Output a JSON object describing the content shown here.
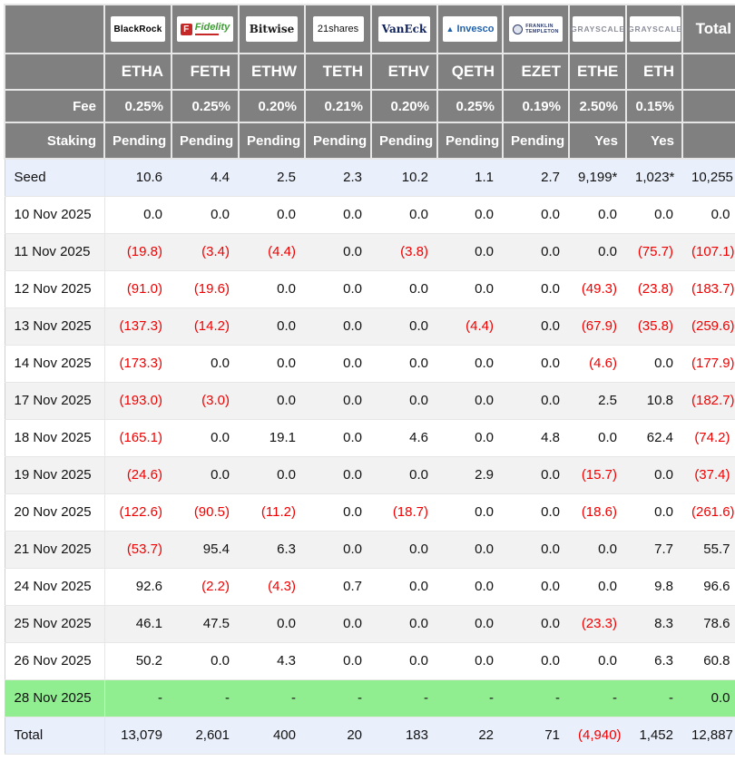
{
  "chart_data": {
    "type": "table",
    "fee_label": "Fee",
    "staking_label": "Staking",
    "total_label": "Total",
    "colors": {
      "header_bg": "#808080",
      "negative_red": "#f20000",
      "highlight_green": "#90ee90",
      "seed_row_blue": "#e9effb",
      "alt_row_gray": "#f2f2f2"
    },
    "providers": [
      {
        "ticker": "ETHA",
        "fee": "0.25%",
        "staking": "Pending",
        "logo": {
          "style": "blackrock",
          "text": "BlackRock"
        }
      },
      {
        "ticker": "FETH",
        "fee": "0.25%",
        "staking": "Pending",
        "logo": {
          "style": "fidelity",
          "mark": "F",
          "text": "Fidelity"
        }
      },
      {
        "ticker": "ETHW",
        "fee": "0.20%",
        "staking": "Pending",
        "logo": {
          "style": "bitwise",
          "text": "Bitwise"
        }
      },
      {
        "ticker": "TETH",
        "fee": "0.21%",
        "staking": "Pending",
        "logo": {
          "style": "21shares",
          "text": "21shares"
        }
      },
      {
        "ticker": "ETHV",
        "fee": "0.20%",
        "staking": "Pending",
        "logo": {
          "style": "vaneck",
          "text": "VanEck"
        }
      },
      {
        "ticker": "QETH",
        "fee": "0.25%",
        "staking": "Pending",
        "logo": {
          "style": "invesco",
          "mark": "▲",
          "text": "Invesco"
        }
      },
      {
        "ticker": "EZET",
        "fee": "0.19%",
        "staking": "Pending",
        "logo": {
          "style": "franklin",
          "text": "FRANKLIN",
          "text2": "TEMPLETON"
        }
      },
      {
        "ticker": "ETHE",
        "fee": "2.50%",
        "staking": "Yes",
        "logo": {
          "style": "grayscale",
          "text": "GRAYSCALE"
        }
      },
      {
        "ticker": "ETH",
        "fee": "0.15%",
        "staking": "Yes",
        "logo": {
          "style": "grayscale",
          "text": "GRAYSCALE"
        }
      }
    ],
    "rows": [
      {
        "label": "Seed",
        "type": "seed",
        "cells": [
          "10.6",
          "4.4",
          "2.5",
          "2.3",
          "10.2",
          "1.1",
          "2.7",
          "9,199*",
          "1,023*",
          "10,255"
        ]
      },
      {
        "label": "10 Nov 2025",
        "type": "plain",
        "cells": [
          "0.0",
          "0.0",
          "0.0",
          "0.0",
          "0.0",
          "0.0",
          "0.0",
          "0.0",
          "0.0",
          "0.0"
        ]
      },
      {
        "label": "11 Nov 2025",
        "type": "alt",
        "cells": [
          "(19.8)",
          "(3.4)",
          "(4.4)",
          "0.0",
          "(3.8)",
          "0.0",
          "0.0",
          "0.0",
          "(75.7)",
          "(107.1)"
        ]
      },
      {
        "label": "12 Nov 2025",
        "type": "plain",
        "cells": [
          "(91.0)",
          "(19.6)",
          "0.0",
          "0.0",
          "0.0",
          "0.0",
          "0.0",
          "(49.3)",
          "(23.8)",
          "(183.7)"
        ]
      },
      {
        "label": "13 Nov 2025",
        "type": "alt",
        "cells": [
          "(137.3)",
          "(14.2)",
          "0.0",
          "0.0",
          "0.0",
          "(4.4)",
          "0.0",
          "(67.9)",
          "(35.8)",
          "(259.6)"
        ]
      },
      {
        "label": "14 Nov 2025",
        "type": "plain",
        "cells": [
          "(173.3)",
          "0.0",
          "0.0",
          "0.0",
          "0.0",
          "0.0",
          "0.0",
          "(4.6)",
          "0.0",
          "(177.9)"
        ]
      },
      {
        "label": "17 Nov 2025",
        "type": "alt",
        "cells": [
          "(193.0)",
          "(3.0)",
          "0.0",
          "0.0",
          "0.0",
          "0.0",
          "0.0",
          "2.5",
          "10.8",
          "(182.7)"
        ]
      },
      {
        "label": "18 Nov 2025",
        "type": "plain",
        "cells": [
          "(165.1)",
          "0.0",
          "19.1",
          "0.0",
          "4.6",
          "0.0",
          "4.8",
          "0.0",
          "62.4",
          "(74.2)"
        ]
      },
      {
        "label": "19 Nov 2025",
        "type": "alt",
        "cells": [
          "(24.6)",
          "0.0",
          "0.0",
          "0.0",
          "0.0",
          "2.9",
          "0.0",
          "(15.7)",
          "0.0",
          "(37.4)"
        ]
      },
      {
        "label": "20 Nov 2025",
        "type": "plain",
        "cells": [
          "(122.6)",
          "(90.5)",
          "(11.2)",
          "0.0",
          "(18.7)",
          "0.0",
          "0.0",
          "(18.6)",
          "0.0",
          "(261.6)"
        ]
      },
      {
        "label": "21 Nov 2025",
        "type": "alt",
        "cells": [
          "(53.7)",
          "95.4",
          "6.3",
          "0.0",
          "0.0",
          "0.0",
          "0.0",
          "0.0",
          "7.7",
          "55.7"
        ]
      },
      {
        "label": "24 Nov 2025",
        "type": "plain",
        "cells": [
          "92.6",
          "(2.2)",
          "(4.3)",
          "0.7",
          "0.0",
          "0.0",
          "0.0",
          "0.0",
          "9.8",
          "96.6"
        ]
      },
      {
        "label": "25 Nov 2025",
        "type": "alt",
        "cells": [
          "46.1",
          "47.5",
          "0.0",
          "0.0",
          "0.0",
          "0.0",
          "0.0",
          "(23.3)",
          "8.3",
          "78.6"
        ]
      },
      {
        "label": "26 Nov 2025",
        "type": "plain",
        "cells": [
          "50.2",
          "0.0",
          "4.3",
          "0.0",
          "0.0",
          "0.0",
          "0.0",
          "0.0",
          "6.3",
          "60.8"
        ]
      },
      {
        "label": "28 Nov 2025",
        "type": "highlight",
        "cells": [
          "-",
          "-",
          "-",
          "-",
          "-",
          "-",
          "-",
          "-",
          "-",
          "0.0"
        ]
      },
      {
        "label": "Total",
        "type": "total",
        "cells": [
          "13,079",
          "2,601",
          "400",
          "20",
          "183",
          "22",
          "71",
          "(4,940)",
          "1,452",
          "12,887"
        ]
      }
    ]
  }
}
